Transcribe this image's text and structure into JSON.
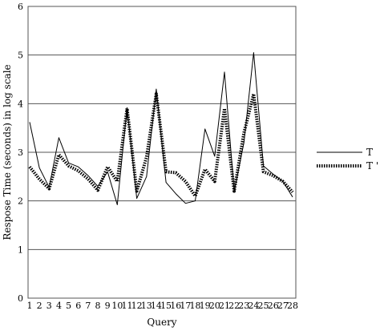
{
  "chart_data": {
    "type": "line",
    "title": "",
    "xlabel": "Query",
    "ylabel": "Respose Time (seconds) in log scale",
    "categories": [
      "1",
      "2",
      "3",
      "4",
      "5",
      "6",
      "7",
      "8",
      "9",
      "10",
      "11",
      "12",
      "13",
      "14",
      "15",
      "16",
      "17",
      "18",
      "19",
      "20",
      "21",
      "22",
      "23",
      "24",
      "25",
      "26",
      "27",
      "28"
    ],
    "ylim": [
      0,
      6
    ],
    "yticks": [
      "0",
      "1",
      "2",
      "3",
      "4",
      "5",
      "6"
    ],
    "grid": "horizontal",
    "legend_position": "right",
    "series": [
      {
        "name": "T",
        "style": "solid",
        "color": "#000000",
        "values": [
          3.62,
          2.68,
          2.28,
          3.3,
          2.78,
          2.7,
          2.52,
          2.3,
          2.6,
          1.92,
          3.92,
          2.05,
          2.5,
          4.3,
          2.38,
          2.15,
          1.95,
          2.0,
          3.48,
          2.92,
          4.65,
          2.2,
          3.2,
          5.05,
          2.72,
          2.55,
          2.4,
          2.08
        ]
      },
      {
        "name": "T '",
        "style": "dotted",
        "color": "#000000",
        "values": [
          2.7,
          2.45,
          2.25,
          2.95,
          2.72,
          2.62,
          2.45,
          2.22,
          2.7,
          2.4,
          3.9,
          2.2,
          2.9,
          4.2,
          2.6,
          2.58,
          2.4,
          2.1,
          2.65,
          2.4,
          3.9,
          2.2,
          3.4,
          4.2,
          2.6,
          2.52,
          2.4,
          2.18
        ]
      }
    ]
  }
}
